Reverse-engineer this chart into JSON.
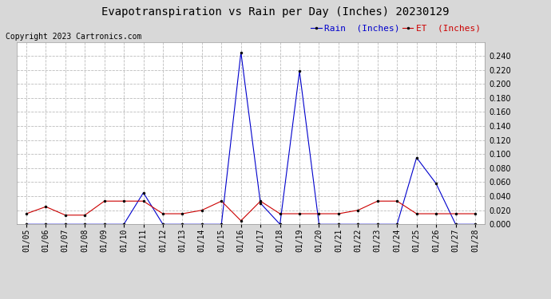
{
  "title": "Evapotranspiration vs Rain per Day (Inches) 20230129",
  "copyright": "Copyright 2023 Cartronics.com",
  "legend_rain": "Rain  (Inches)",
  "legend_et": "ET  (Inches)",
  "dates": [
    "01/05",
    "01/06",
    "01/07",
    "01/08",
    "01/09",
    "01/10",
    "01/11",
    "01/12",
    "01/13",
    "01/14",
    "01/15",
    "01/16",
    "01/17",
    "01/18",
    "01/19",
    "01/20",
    "01/21",
    "01/22",
    "01/23",
    "01/24",
    "01/25",
    "01/26",
    "01/27",
    "01/28"
  ],
  "rain": [
    0.0,
    0.0,
    0.0,
    0.0,
    0.0,
    0.0,
    0.045,
    0.0,
    0.0,
    0.0,
    0.0,
    0.245,
    0.03,
    0.0,
    0.218,
    0.0,
    0.0,
    0.0,
    0.0,
    0.0,
    0.095,
    0.058,
    0.0,
    0.0
  ],
  "et": [
    0.015,
    0.025,
    0.013,
    0.013,
    0.033,
    0.033,
    0.033,
    0.015,
    0.015,
    0.02,
    0.033,
    0.005,
    0.033,
    0.015,
    0.015,
    0.015,
    0.015,
    0.02,
    0.033,
    0.033,
    0.015,
    0.015,
    0.015,
    0.015
  ],
  "ylim": [
    0.0,
    0.26
  ],
  "yticks": [
    0.0,
    0.02,
    0.04,
    0.06,
    0.08,
    0.1,
    0.12,
    0.14,
    0.16,
    0.18,
    0.2,
    0.22,
    0.24
  ],
  "rain_color": "#0000cc",
  "et_color": "#cc0000",
  "bg_color": "#d8d8d8",
  "plot_bg_color": "#ffffff",
  "grid_color": "#bbbbbb",
  "title_fontsize": 10,
  "copyright_fontsize": 7,
  "legend_fontsize": 8,
  "tick_fontsize": 7
}
